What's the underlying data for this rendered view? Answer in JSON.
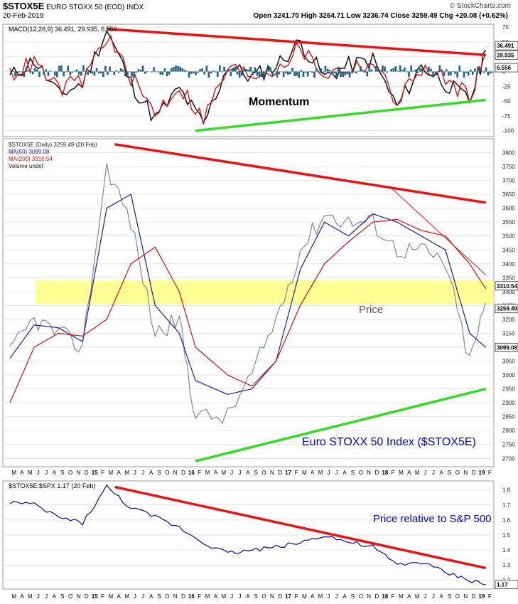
{
  "header": {
    "ticker": "$STOX5E",
    "name": "EURO STOXX 50 (EOD) INDX",
    "date": "20-Feb-2019",
    "ohlc": "Open 3241.70  High 3264.71  Low 3236.74  Close 3259.49  Chg +20.08 (+0.62%)",
    "source": "© StockCharts.com"
  },
  "panels": {
    "macd": {
      "legend": "MACD(12,26,9) 36.491, 29.935, 6.556",
      "annotation": "Momentum",
      "value_tags": [
        "36.491",
        "29.935",
        "6.556"
      ]
    },
    "price": {
      "legend": [
        "$STOX5E (Daily) 3259.49 (20 Feb)",
        "MA(50) 3099.08",
        "MA(200) 3310.54",
        "Volume undef"
      ],
      "annotation_mid": "Price",
      "annotation_main": "Euro STOXX 50 Index ($STOX5E)",
      "value_tags": [
        "3310.54",
        "3259.49",
        "3099.08"
      ]
    },
    "ratio": {
      "legend": "$STOX5E:$SPX 1.17 (20 Feb)",
      "annotation": "Price relative to S&P 500",
      "value_tags": [
        "1.17"
      ]
    }
  },
  "x_axis_labels": [
    "M",
    "A",
    "M",
    "J",
    "J",
    "A",
    "S",
    "O",
    "N",
    "D",
    "15",
    "F",
    "M",
    "A",
    "M",
    "J",
    "J",
    "A",
    "S",
    "O",
    "N",
    "D",
    "16",
    "F",
    "M",
    "A",
    "M",
    "J",
    "J",
    "A",
    "S",
    "O",
    "N",
    "D",
    "17",
    "F",
    "M",
    "A",
    "M",
    "J",
    "J",
    "A",
    "S",
    "O",
    "N",
    "D",
    "18",
    "F",
    "M",
    "A",
    "M",
    "J",
    "J",
    "A",
    "S",
    "O",
    "N",
    "D",
    "19",
    "F"
  ],
  "colors": {
    "price": "#7a8a96",
    "ma50": "#1a1aa0",
    "ma200": "#d01010",
    "macd": "#000000",
    "signal": "#e01010",
    "histogram": "#1f5f80",
    "trend_red": "#ee1111",
    "trend_green": "#33dd22",
    "zone": "#ffff66",
    "ratio": "#0a0a88",
    "annot_blue": "#0000cc"
  },
  "chart_data": [
    {
      "type": "line",
      "title": "MACD(12,26,9)",
      "x": [
        "2014-03",
        "2014-06",
        "2014-09",
        "2014-12",
        "2015-03",
        "2015-06",
        "2015-09",
        "2015-12",
        "2016-03",
        "2016-06",
        "2016-09",
        "2016-12",
        "2017-03",
        "2017-06",
        "2017-09",
        "2017-12",
        "2018-03",
        "2018-06",
        "2018-09",
        "2018-12",
        "2019-02"
      ],
      "ylim": [
        -110,
        80
      ],
      "yticks": [
        75,
        50,
        25,
        0,
        -25,
        -50,
        -75,
        -100
      ],
      "series": [
        {
          "name": "MACD",
          "values": [
            -10,
            20,
            -40,
            -20,
            70,
            -20,
            -80,
            -30,
            -90,
            10,
            -10,
            10,
            50,
            -10,
            10,
            20,
            -60,
            10,
            -20,
            -50,
            36.491
          ]
        },
        {
          "name": "Signal",
          "values": [
            -5,
            15,
            -30,
            -15,
            60,
            -10,
            -70,
            -25,
            -80,
            5,
            -5,
            5,
            40,
            -5,
            5,
            15,
            -50,
            5,
            -15,
            -40,
            29.935
          ]
        },
        {
          "name": "Histogram",
          "values": [
            -5,
            5,
            -10,
            -5,
            10,
            -10,
            -10,
            -5,
            -10,
            5,
            -5,
            5,
            10,
            -5,
            5,
            5,
            -10,
            5,
            -5,
            -10,
            6.556
          ]
        }
      ],
      "trendlines": [
        {
          "color": "red",
          "from": [
            "2015-03",
            72
          ],
          "to": [
            "2019-02",
            28
          ]
        },
        {
          "color": "green",
          "from": [
            "2016-02",
            -100
          ],
          "to": [
            "2019-02",
            -48
          ]
        }
      ]
    },
    {
      "type": "line",
      "title": "$STOX5E (Daily)",
      "x": [
        "2014-03",
        "2014-06",
        "2014-09",
        "2014-12",
        "2015-03",
        "2015-06",
        "2015-09",
        "2015-12",
        "2016-02",
        "2016-06",
        "2016-09",
        "2016-12",
        "2017-03",
        "2017-06",
        "2017-09",
        "2017-12",
        "2018-03",
        "2018-06",
        "2018-09",
        "2018-12",
        "2019-02"
      ],
      "ylim": [
        2670,
        3850
      ],
      "yticks": [
        3800,
        3750,
        3700,
        3650,
        3600,
        3550,
        3500,
        3450,
        3400,
        3350,
        3300,
        3250,
        3200,
        3150,
        3100,
        3050,
        3000,
        2950,
        2900,
        2850,
        2800,
        2750,
        2700
      ],
      "series": [
        {
          "name": "$STOX5E",
          "values": [
            3080,
            3200,
            3150,
            3100,
            3750,
            3550,
            3150,
            3200,
            2850,
            2850,
            3000,
            3200,
            3450,
            3580,
            3550,
            3550,
            3450,
            3450,
            3400,
            3050,
            3259.49
          ]
        },
        {
          "name": "MA(50)",
          "values": [
            3060,
            3180,
            3170,
            3120,
            3600,
            3650,
            3250,
            3150,
            2980,
            2930,
            2950,
            3050,
            3380,
            3550,
            3500,
            3580,
            3550,
            3500,
            3450,
            3150,
            3099.08
          ]
        },
        {
          "name": "MA(200)",
          "values": [
            2900,
            3100,
            3150,
            3140,
            3200,
            3400,
            3460,
            3300,
            3100,
            3000,
            2960,
            3050,
            3250,
            3400,
            3480,
            3550,
            3560,
            3520,
            3500,
            3400,
            3310.54
          ]
        }
      ],
      "trendlines": [
        {
          "color": "red",
          "from": [
            "2015-04",
            3830
          ],
          "to": [
            "2019-02",
            3620
          ]
        },
        {
          "color": "red-thin",
          "from": [
            "2018-02",
            3680
          ],
          "to": [
            "2019-02",
            3360
          ]
        },
        {
          "color": "green",
          "from": [
            "2016-02",
            2690
          ],
          "to": [
            "2019-02",
            2950
          ]
        }
      ],
      "zone": {
        "from": 3255,
        "to": 3340
      }
    },
    {
      "type": "line",
      "title": "$STOX5E:$SPX",
      "x": [
        "2014-03",
        "2014-06",
        "2014-09",
        "2014-12",
        "2015-03",
        "2015-06",
        "2015-09",
        "2015-12",
        "2016-03",
        "2016-06",
        "2016-09",
        "2016-12",
        "2017-03",
        "2017-06",
        "2017-09",
        "2017-12",
        "2018-03",
        "2018-06",
        "2018-09",
        "2018-12",
        "2019-02"
      ],
      "ylim": [
        1.14,
        1.86
      ],
      "yticks": [
        1.8,
        1.7,
        1.6,
        1.5,
        1.4,
        1.3,
        1.2
      ],
      "series": [
        {
          "name": "$STOX5E:$SPX",
          "values": [
            1.72,
            1.7,
            1.62,
            1.58,
            1.82,
            1.68,
            1.62,
            1.55,
            1.45,
            1.38,
            1.4,
            1.42,
            1.45,
            1.5,
            1.45,
            1.42,
            1.3,
            1.32,
            1.25,
            1.2,
            1.17
          ]
        }
      ],
      "trendlines": [
        {
          "color": "red",
          "from": [
            "2015-04",
            1.82
          ],
          "to": [
            "2019-02",
            1.28
          ]
        }
      ]
    }
  ]
}
